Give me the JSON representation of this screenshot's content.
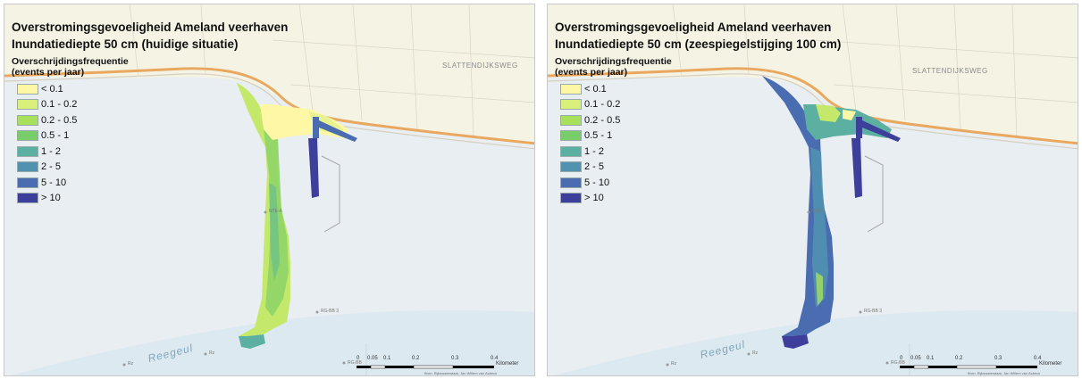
{
  "legend": {
    "title_line1": "Overschrijdingsfrequentie",
    "title_line2": "(events per jaar)",
    "items": [
      {
        "label": "< 0.1",
        "color": "#fdf7a6"
      },
      {
        "label": "0.1 - 0.2",
        "color": "#d9f07a"
      },
      {
        "label": "0.2 - 0.5",
        "color": "#a8e05c"
      },
      {
        "label": "0.5 - 1",
        "color": "#78cc6a"
      },
      {
        "label": "1 - 2",
        "color": "#5cb0a2"
      },
      {
        "label": "2 - 5",
        "color": "#5092b0"
      },
      {
        "label": "5 - 10",
        "color": "#4a6cb0"
      },
      {
        "label": "> 10",
        "color": "#3d3f9a"
      }
    ]
  },
  "panels": [
    {
      "title": "Overstromingsgevoeligheid Ameland veerhaven",
      "subtitle": "Inundatiediepte 50 cm (huidige situatie)"
    },
    {
      "title": "Overstromingsgevoeligheid Ameland veerhaven",
      "subtitle": "Inundatiediepte 50 cm (zeespiegelstijging 100 cm)"
    }
  ],
  "map": {
    "road_label": "SLATTENDIJKSWEG",
    "channel_label": "Reegeul",
    "marker_label_1": "NTE-A",
    "marker_label_2": "RG-BB 3",
    "marker_label_3": "RG-BB",
    "marker_label_4": "Rz",
    "scale_ticks": [
      "0",
      "0.05",
      "0.1",
      "0.2",
      "0.3",
      "0.4"
    ],
    "scale_unit": "Kilometer",
    "credit": "Bron: Rijkswaterstaat, Jan Willem van Asbeck"
  }
}
